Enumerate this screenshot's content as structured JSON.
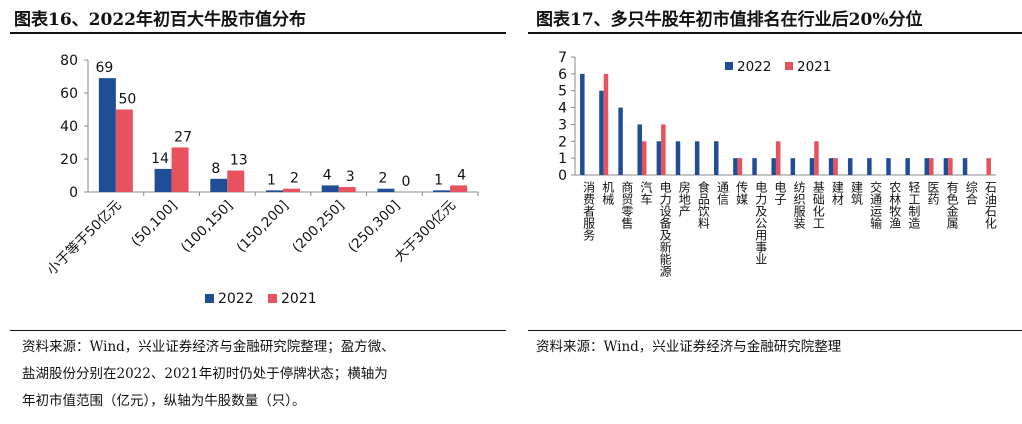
{
  "left_panel": {
    "title": "图表16、2022年初百大牛股市值分布",
    "source_lines": [
      "资料来源：Wind，兴业证券经济与金融研究院整理；盈方微、",
      "盐湖股份分别在2022、2021年初时仍处于停牌状态；横轴为",
      "年初市值范围（亿元），纵轴为牛股数量（只）。"
    ]
  },
  "right_panel": {
    "title": "图表17、多只牛股年初市值排名在行业后20%分位",
    "source_lines": [
      "资料来源：Wind，兴业证券经济与金融研究院整理"
    ]
  },
  "colors": {
    "s2022": "#1f4e97",
    "s2021": "#e8525e",
    "axis": "#888888"
  },
  "chart_data": [
    {
      "type": "bar",
      "title": "图表16、2022年初百大牛股市值分布",
      "categories": [
        "小于等于50亿元",
        "(50,100]",
        "(100,150]",
        "(150,200]",
        "(200,250]",
        "(250,300]",
        "大于300亿元"
      ],
      "series": [
        {
          "name": "2022",
          "values": [
            69,
            14,
            8,
            1,
            4,
            2,
            1
          ]
        },
        {
          "name": "2021",
          "values": [
            50,
            27,
            13,
            2,
            3,
            0,
            4
          ]
        }
      ],
      "ylim": [
        0,
        80
      ],
      "yticks": [
        0,
        20,
        40,
        60,
        80
      ],
      "data_labels": true,
      "legend": "bottom"
    },
    {
      "type": "bar",
      "title": "图表17、多只牛股年初市值排名在行业后20%分位",
      "categories": [
        "消费者服务",
        "机械",
        "商贸零售",
        "汽车",
        "电力设备及新能源",
        "房地产",
        "食品饮料",
        "通信",
        "传媒",
        "电力及公用事业",
        "电子",
        "纺织服装",
        "基础化工",
        "建材",
        "建筑",
        "交通运输",
        "农林牧渔",
        "轻工制造",
        "医药",
        "有色金属",
        "综合",
        "石油石化"
      ],
      "series": [
        {
          "name": "2022",
          "values": [
            6,
            5,
            4,
            3,
            2,
            2,
            2,
            2,
            1,
            1,
            1,
            1,
            1,
            1,
            1,
            1,
            1,
            1,
            1,
            1,
            1,
            0
          ]
        },
        {
          "name": "2021",
          "values": [
            0,
            6,
            0,
            2,
            3,
            0,
            0,
            0,
            1,
            0,
            2,
            0,
            2,
            1,
            0,
            0,
            0,
            0,
            1,
            1,
            0,
            1
          ]
        }
      ],
      "ylim": [
        0,
        7
      ],
      "yticks": [
        0,
        1,
        2,
        3,
        4,
        5,
        6,
        7
      ],
      "legend": "top"
    }
  ]
}
